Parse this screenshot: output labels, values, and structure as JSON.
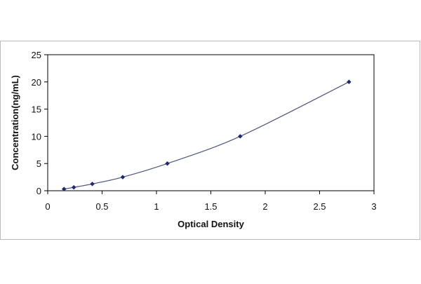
{
  "chart_data": {
    "type": "scatter",
    "xlabel": "Optical Density",
    "ylabel": "Concentration(ng/mL)",
    "xlim": [
      0,
      3
    ],
    "ylim": [
      0,
      25
    ],
    "x_ticks": [
      "0",
      "0.5",
      "1",
      "1.5",
      "2",
      "2.5",
      "3"
    ],
    "y_ticks": [
      "0",
      "5",
      "10",
      "15",
      "20",
      "25"
    ],
    "grid": false,
    "legend": "none",
    "trendline": "smooth curve through points",
    "series": [
      {
        "x": [
          0.15,
          0.24,
          0.41,
          0.69,
          1.1,
          1.77,
          2.77
        ],
        "y": [
          0.313,
          0.625,
          1.25,
          2.5,
          5,
          10,
          20
        ]
      }
    ],
    "colors": {
      "marker": "#1f2a6e",
      "line": "#4d5680",
      "frame": "#000000"
    }
  }
}
